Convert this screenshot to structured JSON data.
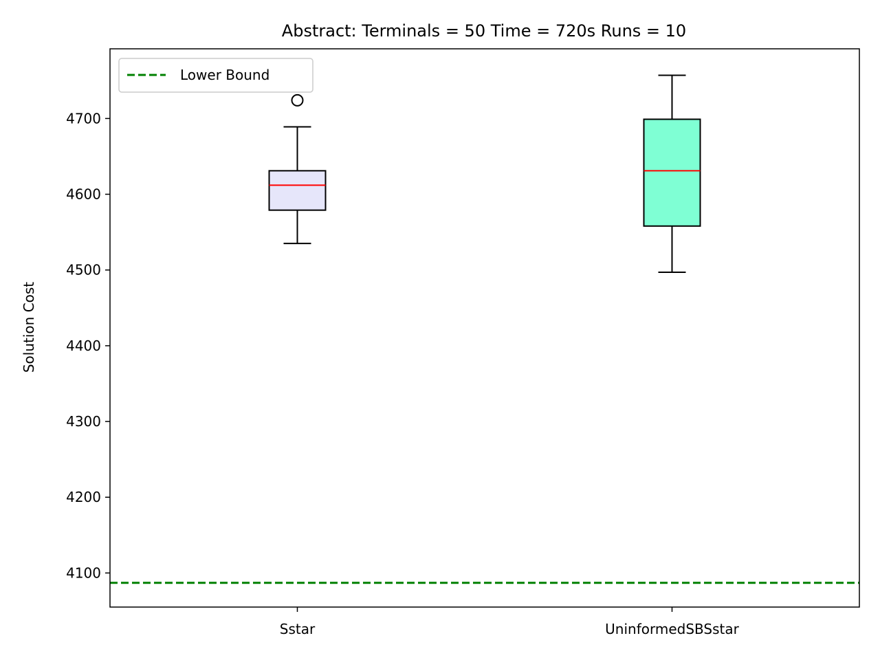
{
  "chart_data": {
    "type": "box",
    "title": "Abstract:  Terminals = 50  Time = 720s  Runs = 10",
    "xlabel": "",
    "ylabel": "Solution Cost",
    "ylim": [
      4055,
      4792
    ],
    "yticks": [
      4100,
      4200,
      4300,
      4400,
      4500,
      4600,
      4700
    ],
    "categories": [
      "Sstar",
      "UninformedSBSstar"
    ],
    "boxes": [
      {
        "category": "Sstar",
        "whisker_low": 4535,
        "q1": 4579,
        "median": 4612,
        "q3": 4631,
        "whisker_high": 4689,
        "outliers": [
          4724
        ],
        "fill": "#e6e6fa"
      },
      {
        "category": "UninformedSBSstar",
        "whisker_low": 4497,
        "q1": 4558,
        "median": 4631,
        "q3": 4699,
        "whisker_high": 4757,
        "outliers": [],
        "fill": "#7fffd4"
      }
    ],
    "lower_bound": {
      "name": "Lower Bound",
      "value": 4087,
      "color": "#008000",
      "style": "dashed"
    },
    "median_color": "#ff0000",
    "legend_position": "top-left",
    "grid": false
  }
}
